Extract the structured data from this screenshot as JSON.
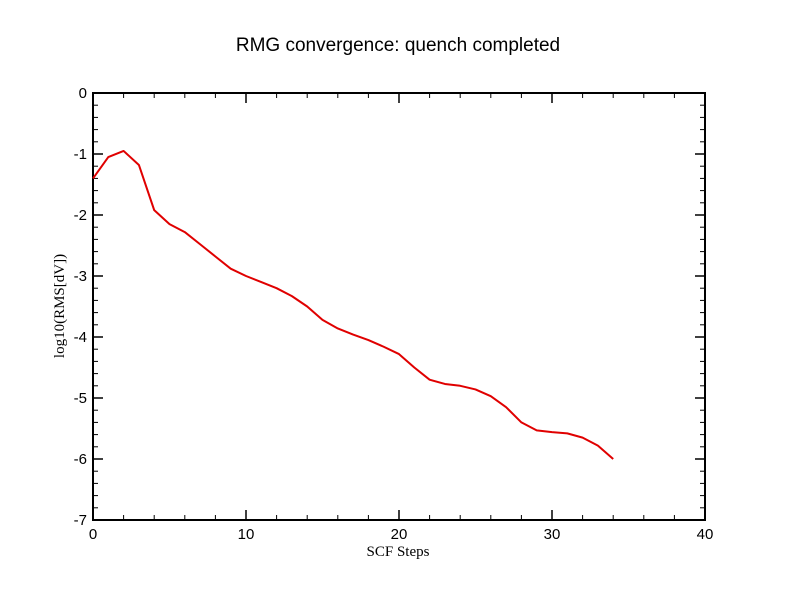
{
  "chart_data": {
    "type": "line",
    "title": "RMG convergence: quench completed",
    "xlabel": "SCF Steps",
    "ylabel": "log10(RMS[dV])",
    "xlim": [
      0,
      40
    ],
    "ylim": [
      -7,
      0
    ],
    "xticks": [
      0,
      10,
      20,
      30,
      40
    ],
    "yticks": [
      0,
      -1,
      -2,
      -3,
      -4,
      -5,
      -6,
      -7
    ],
    "x_minor_step": 2,
    "y_minor_step": 0.2,
    "grid": false,
    "legend": "none",
    "series": [
      {
        "color": "#e00000",
        "x": [
          0,
          1,
          2,
          3,
          4,
          5,
          6,
          7,
          8,
          9,
          10,
          11,
          12,
          13,
          14,
          15,
          16,
          17,
          18,
          19,
          20,
          21,
          22,
          23,
          24,
          25,
          26,
          27,
          28,
          29,
          30,
          31,
          32,
          33,
          34
        ],
        "y": [
          -1.4,
          -1.05,
          -0.95,
          -1.18,
          -1.92,
          -2.15,
          -2.28,
          -2.48,
          -2.68,
          -2.88,
          -3.0,
          -3.1,
          -3.2,
          -3.33,
          -3.5,
          -3.72,
          -3.86,
          -3.96,
          -4.05,
          -4.16,
          -4.28,
          -4.5,
          -4.7,
          -4.77,
          -4.8,
          -4.86,
          -4.97,
          -5.15,
          -5.4,
          -5.53,
          -5.56,
          -5.58,
          -5.65,
          -5.78,
          -6.0
        ]
      }
    ]
  }
}
